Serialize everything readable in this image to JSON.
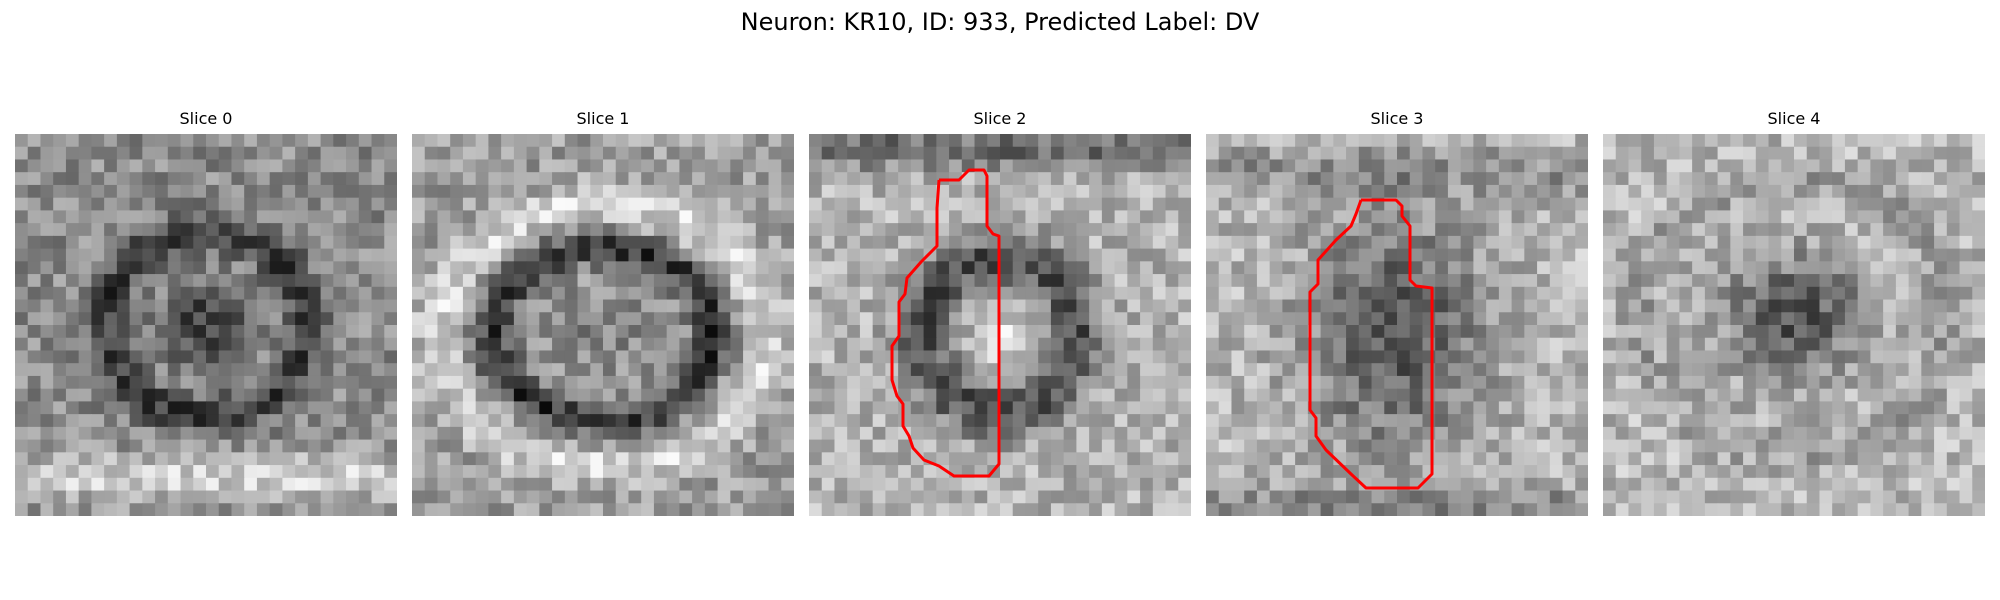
{
  "figure": {
    "title": "Neuron: KR10, ID: 933, Predicted Label: DV"
  },
  "panels": [
    {
      "title": "Slice 0",
      "has_contour": false,
      "style": "dark-core"
    },
    {
      "title": "Slice 1",
      "has_contour": false,
      "style": "dark-ring"
    },
    {
      "title": "Slice 2",
      "has_contour": true,
      "style": "ring-bright-core"
    },
    {
      "title": "Slice 3",
      "has_contour": true,
      "style": "dark-core-bright-sides"
    },
    {
      "title": "Slice 4",
      "has_contour": false,
      "style": "small-dark-core"
    }
  ],
  "contour_color": "#ff0000",
  "colormap": "grayscale"
}
